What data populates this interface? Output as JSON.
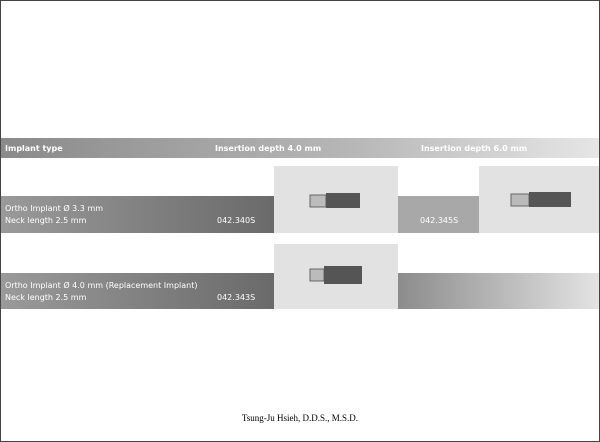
{
  "table": {
    "header": [
      "Implant type",
      "Insertion depth 4.0 mm",
      "Insertion depth 6.0 mm"
    ],
    "rows": [
      {
        "name": "Ortho Implant Ø 3.3 mm",
        "neck": "Neck length 2.5 mm",
        "code_4": "042.340S",
        "code_6": "042.345S"
      },
      {
        "name": "Ortho Implant Ø 4.0 mm (Replacement Implant)",
        "neck": "Neck length 2.5 mm",
        "code_4": "042.343S"
      }
    ]
  },
  "footer": "Tsung-Ju Hsieh, D.D.S., M.S.D."
}
